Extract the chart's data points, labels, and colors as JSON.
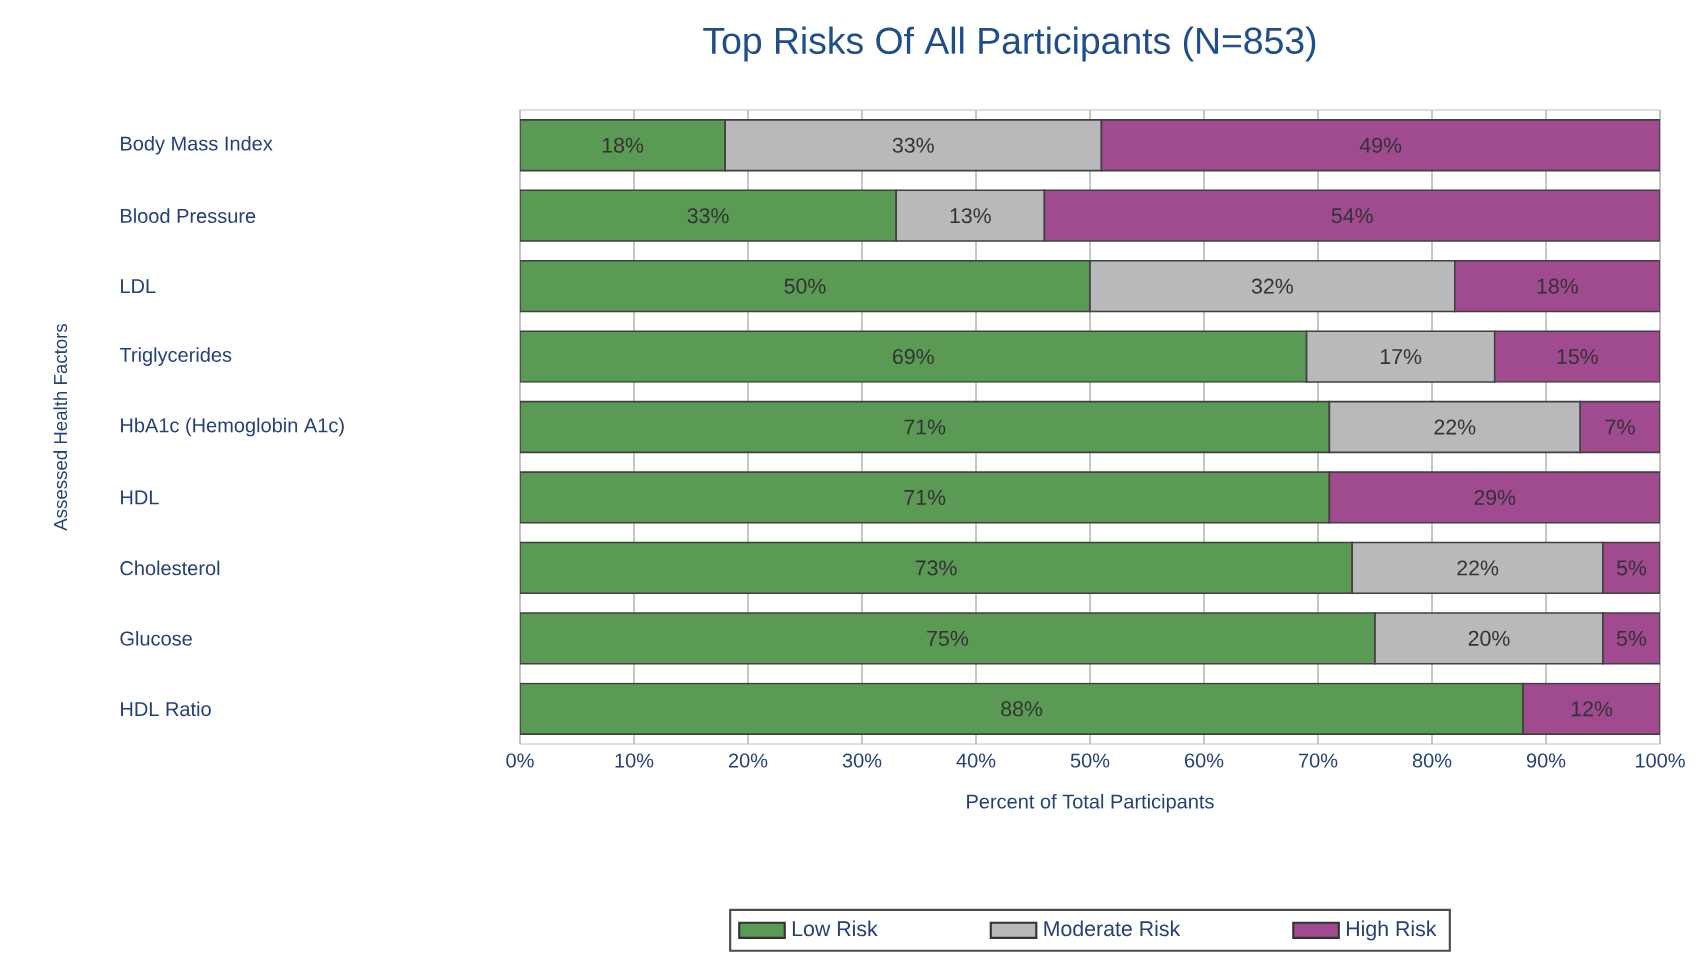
{
  "chart_data": {
    "type": "bar",
    "orientation": "horizontal",
    "stacked": true,
    "title": "Top Risks Of All Participants (N=853)",
    "xlabel": "Percent of Total Participants",
    "ylabel": "Assessed Health Factors",
    "categories": [
      "Body Mass Index",
      "Blood Pressure",
      "LDL",
      "Triglycerides",
      "HbA1c (Hemoglobin A1c)",
      "HDL",
      "Cholesterol",
      "Glucose",
      "HDL Ratio"
    ],
    "series": [
      {
        "name": "Low Risk",
        "color": "#5b9a55",
        "values": [
          18,
          33,
          50,
          69,
          71,
          71,
          73,
          75,
          88
        ],
        "value_labels": [
          "18%",
          "33%",
          "50%",
          "69%",
          "71%",
          "71%",
          "73%",
          "75%",
          "88%"
        ]
      },
      {
        "name": "Moderate Risk",
        "color": "#b9b9bb",
        "values": [
          33,
          13,
          32,
          16.5,
          22,
          null,
          22,
          20,
          null
        ],
        "value_labels": [
          "33%",
          "13%",
          "32%",
          "17%",
          "22%",
          null,
          "22%",
          "20%",
          null
        ]
      },
      {
        "name": "High Risk",
        "color": "#a04a90",
        "values": [
          49,
          54,
          18,
          14.5,
          7,
          29,
          5,
          5,
          12
        ],
        "value_labels": [
          "49%",
          "54%",
          "18%",
          "15%",
          "7%",
          "29%",
          "5%",
          "5%",
          "12%"
        ]
      }
    ],
    "xlim": [
      0,
      100
    ],
    "xticks": [
      {
        "value": 0,
        "label": "0%"
      },
      {
        "value": 10,
        "label": "10%"
      },
      {
        "value": 20,
        "label": "20%"
      },
      {
        "value": 30,
        "label": "30%"
      },
      {
        "value": 40,
        "label": "40%"
      },
      {
        "value": 50,
        "label": "50%"
      },
      {
        "value": 60,
        "label": "60%"
      },
      {
        "value": 70,
        "label": "70%"
      },
      {
        "value": 80,
        "label": "80%"
      },
      {
        "value": 90,
        "label": "90%"
      },
      {
        "value": 100,
        "label": "100%"
      }
    ],
    "grid": "x",
    "legend": "bottom"
  }
}
